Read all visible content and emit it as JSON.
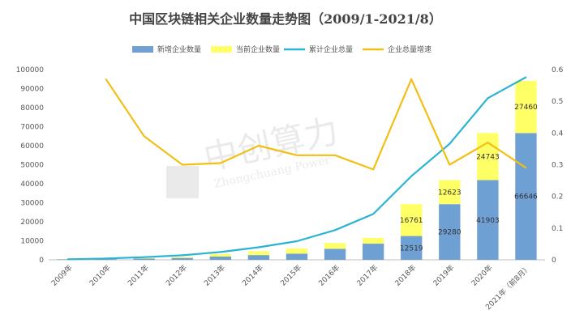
{
  "chart_data": {
    "type": "bar",
    "title": "中国区块链相关企业数量走势图（2009/1-2021/8）",
    "categories": [
      "2009年",
      "2010年",
      "2011年",
      "2012年",
      "2013年",
      "2014年",
      "2015年",
      "2016年",
      "2017年",
      "2018年",
      "2019年",
      "2020年",
      "2021年（前8月）"
    ],
    "series": [
      {
        "name": "新增企业数量",
        "kind": "bar",
        "stack": "main",
        "color": "#6fa0d4",
        "axis": "left",
        "values": [
          300,
          400,
          700,
          1000,
          1700,
          2500,
          3200,
          5800,
          8500,
          12519,
          29280,
          41903,
          66646
        ]
      },
      {
        "name": "当前企业数量",
        "kind": "bar",
        "stack": "main",
        "color": "#ffff66",
        "axis": "left",
        "values": [
          100,
          200,
          300,
          500,
          1300,
          2000,
          2800,
          3000,
          3000,
          16761,
          12623,
          24743,
          27460
        ]
      },
      {
        "name": "累计企业总量",
        "kind": "line",
        "color": "#2bb3d6",
        "axis": "left",
        "values": [
          300,
          700,
          1400,
          2400,
          4100,
          6600,
          9800,
          15600,
          24100,
          44000,
          61000,
          85000,
          96000
        ]
      },
      {
        "name": "企业总量增速",
        "kind": "line",
        "color": "#f2bf14",
        "axis": "right",
        "values": [
          null,
          0.57,
          0.39,
          0.3,
          0.305,
          0.36,
          0.33,
          0.33,
          0.285,
          0.57,
          0.3,
          0.37,
          0.29
        ]
      }
    ],
    "bar_labels": {
      "新增企业数量": {
        "9": "12519",
        "10": "29280",
        "11": "41903",
        "12": "66646"
      },
      "当前企业数量": {
        "9": "16761",
        "10": "12623",
        "11": "24743",
        "12": "27460"
      }
    },
    "y_left": {
      "min": 0,
      "max": 100000,
      "ticks": [
        "0",
        "10000",
        "20000",
        "30000",
        "40000",
        "50000",
        "60000",
        "70000",
        "80000",
        "90000",
        "100000"
      ]
    },
    "y_right": {
      "min": 0,
      "max": 0.6,
      "ticks": [
        "0",
        "0.1",
        "0.2",
        "0.3",
        "0.4",
        "0.5",
        "0.6"
      ]
    },
    "grid": false,
    "legend_position": "top",
    "watermark": {
      "cn": "中创算力",
      "en": "Zhongchuang Power"
    }
  }
}
